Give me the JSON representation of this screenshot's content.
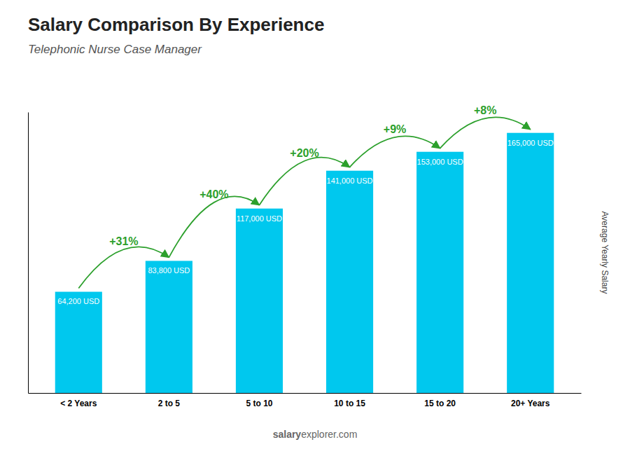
{
  "chart_data": {
    "type": "bar",
    "title": "Salary Comparison By Experience",
    "subtitle": "Telephonic Nurse Case Manager",
    "ylabel": "Average Yearly Salary",
    "categories": [
      "< 2 Years",
      "2 to 5",
      "5 to 10",
      "10 to 15",
      "15 to 20",
      "20+ Years"
    ],
    "values": [
      64200,
      83800,
      117000,
      141000,
      153000,
      165000
    ],
    "value_labels": [
      "64,200 USD",
      "83,800 USD",
      "117,000 USD",
      "141,000 USD",
      "153,000 USD",
      "165,000 USD"
    ],
    "data_labels": true,
    "annotations": [
      "+31%",
      "+40%",
      "+20%",
      "+9%",
      "+8%"
    ],
    "watermark": [
      "salary",
      "explorer.com"
    ],
    "color": "#00c8ee",
    "ylim": [
      0,
      178200
    ],
    "tick_labels": "x",
    "grid": false
  }
}
